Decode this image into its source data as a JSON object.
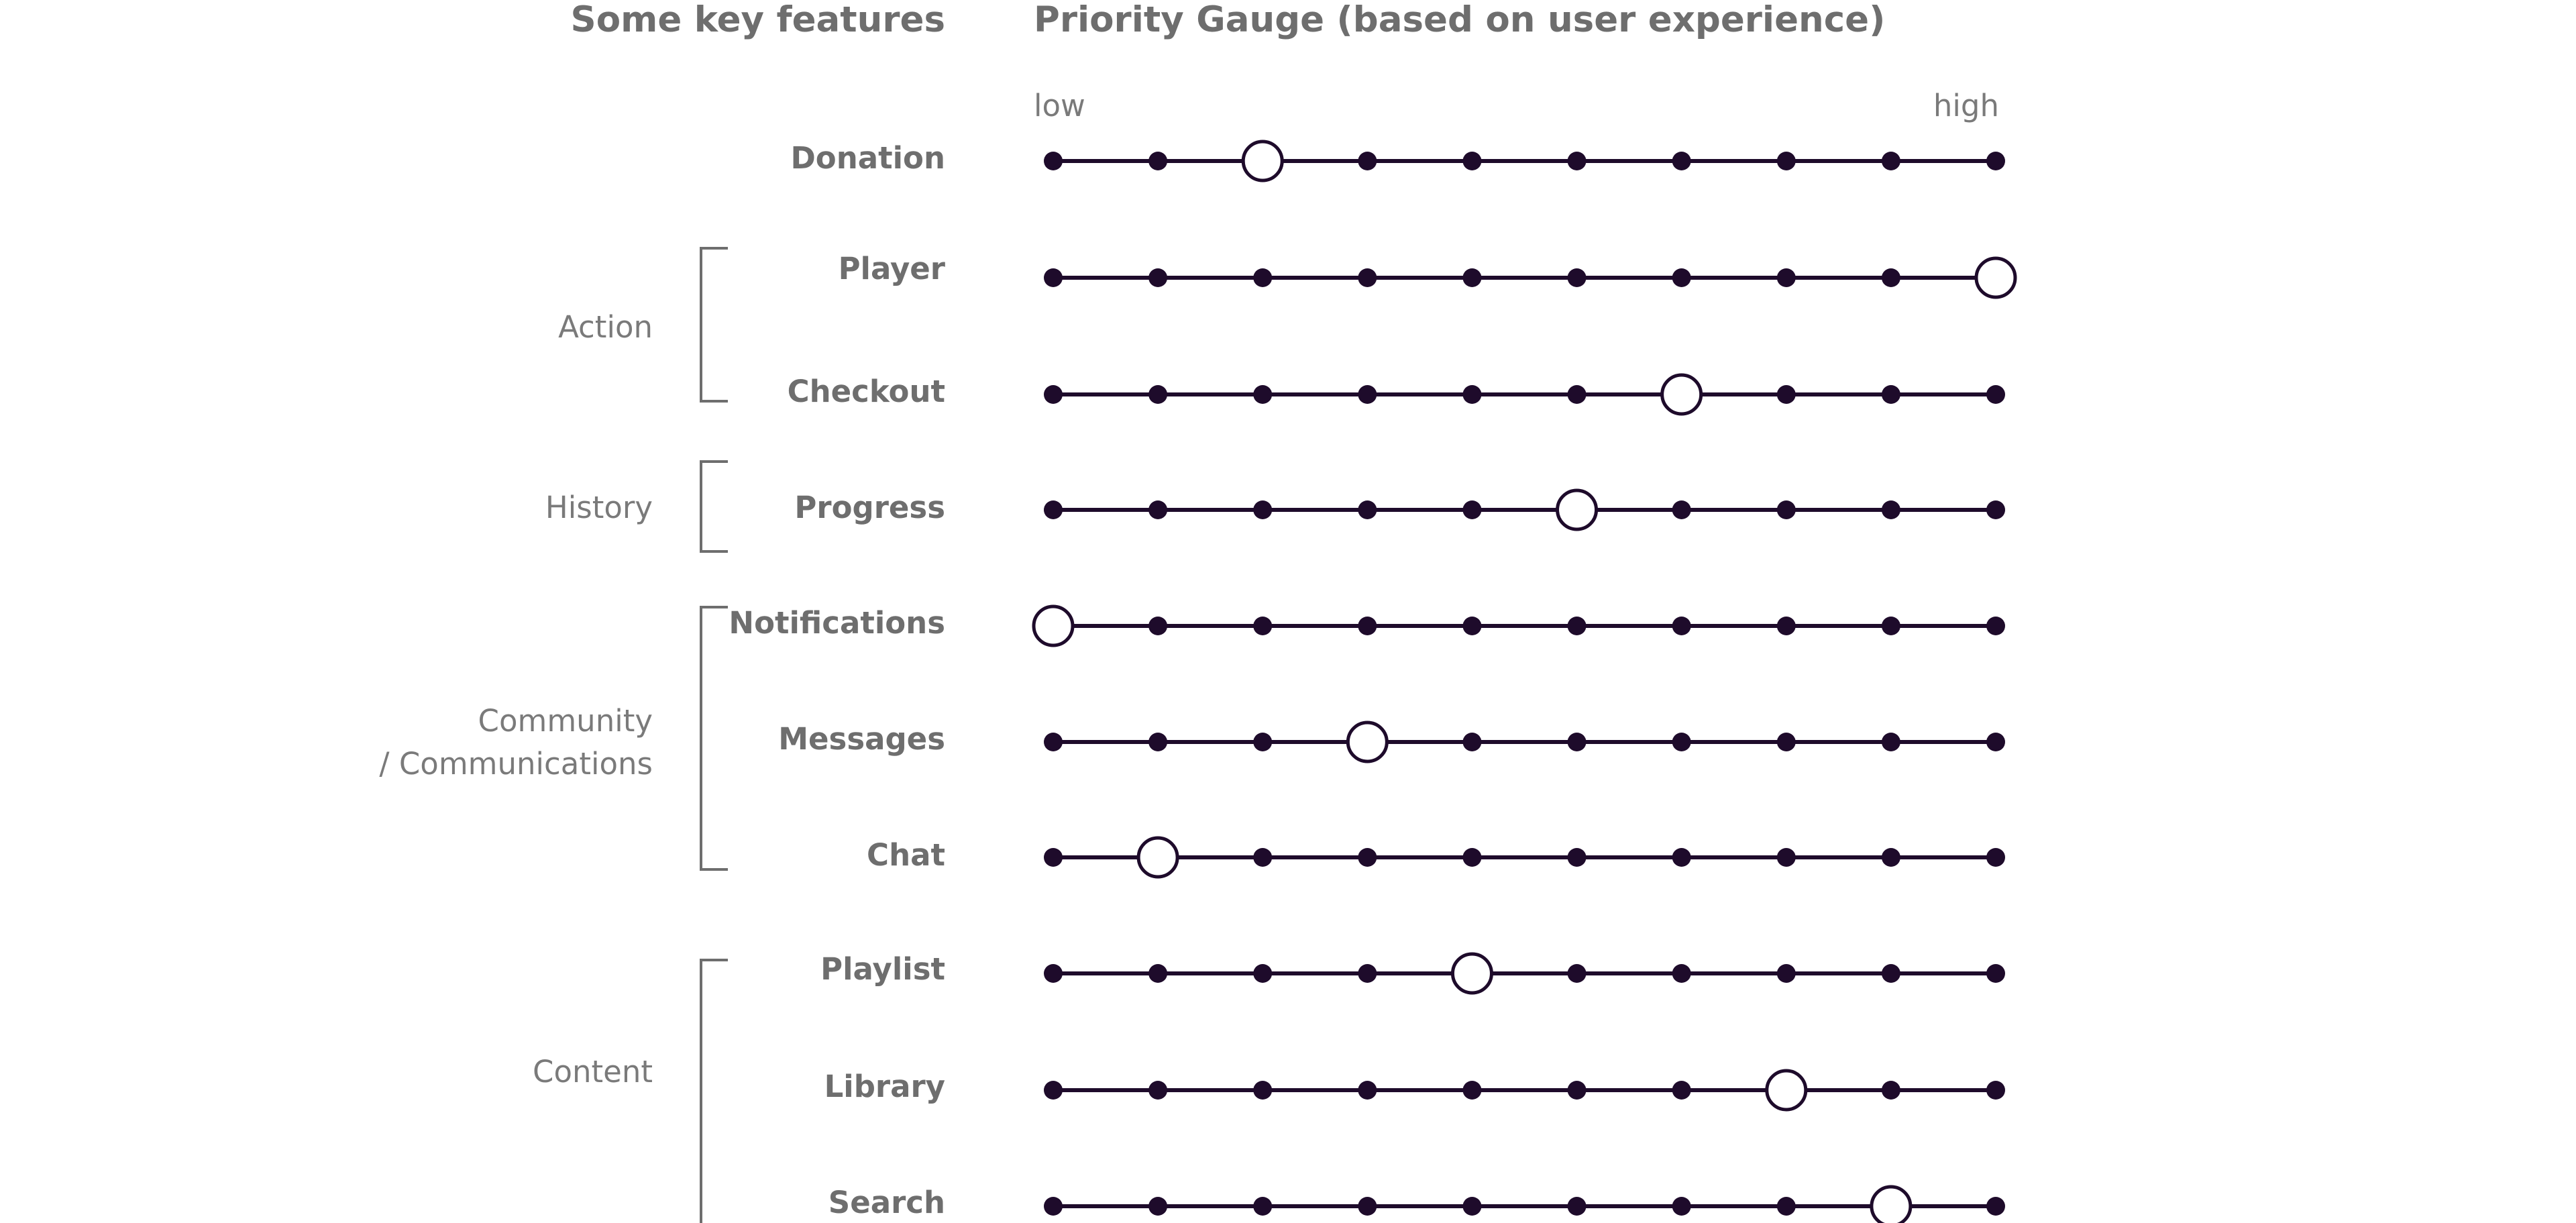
{
  "headings": {
    "features": "Some key features",
    "gauge": "Priority Gauge (based on user experience)"
  },
  "scale": {
    "low_label": "low",
    "high_label": "high",
    "steps": 10
  },
  "groups": [
    {
      "id": "action",
      "lines": [
        "Action"
      ]
    },
    {
      "id": "history",
      "lines": [
        "History"
      ]
    },
    {
      "id": "community",
      "lines": [
        "Community",
        "/ Communications"
      ]
    },
    {
      "id": "content",
      "lines": [
        "Content"
      ]
    }
  ],
  "features": [
    {
      "label": "Donation",
      "group": null,
      "priority": 3
    },
    {
      "label": "Player",
      "group": "action",
      "priority": 10
    },
    {
      "label": "Checkout",
      "group": "action",
      "priority": 7
    },
    {
      "label": "Progress",
      "group": "history",
      "priority": 6
    },
    {
      "label": "Notifications",
      "group": "community",
      "priority": 1
    },
    {
      "label": "Messages",
      "group": "community",
      "priority": 4
    },
    {
      "label": "Chat",
      "group": "community",
      "priority": 2
    },
    {
      "label": "Playlist",
      "group": "content",
      "priority": 5
    },
    {
      "label": "Library",
      "group": "content",
      "priority": 8
    },
    {
      "label": "Search",
      "group": "content",
      "priority": 9
    }
  ],
  "colors": {
    "track": "#1e0b2b",
    "dot": "#1e0b2b",
    "marker_fill": "#ffffff",
    "marker_stroke": "#1e0b2b",
    "bracket": "#6e6e6e"
  }
}
